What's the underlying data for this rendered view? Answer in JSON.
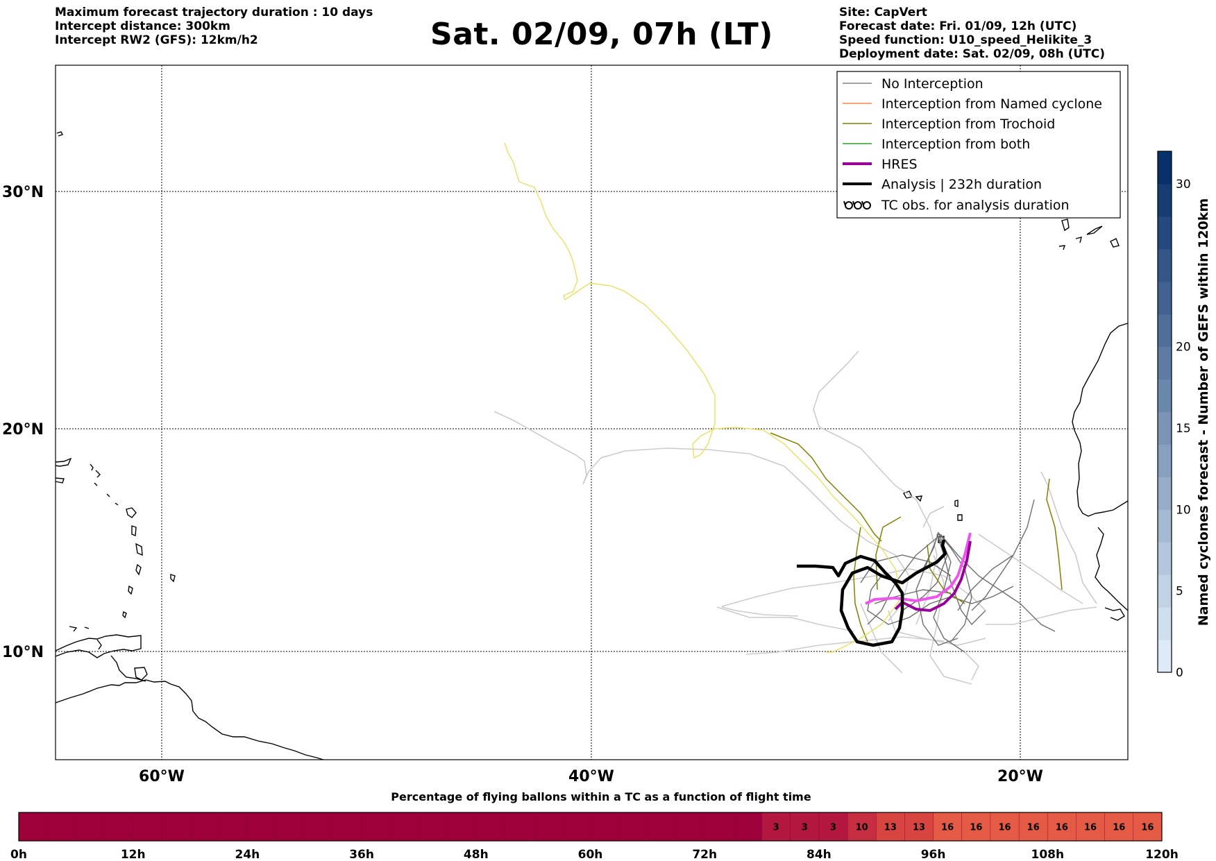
{
  "header_left": [
    "Maximum forecast trajectory duration : 10 days",
    "Intercept distance: 300km",
    "Intercept RW2 (GFS):  12km/h2"
  ],
  "title": "Sat. 02/09, 07h (LT)",
  "header_right": [
    "Site: CapVert",
    "Forecast date: Fri. 01/09, 12h (UTC)",
    "Speed function: U10_speed_Helikite_3",
    "Deployment date: Sat. 02/09, 08h (UTC)"
  ],
  "map": {
    "lat_labels": [
      "30°N",
      "20°N",
      "10°N"
    ],
    "lon_labels": [
      "60°W",
      "40°W",
      "20°W"
    ],
    "lat_values": [
      30,
      20,
      10
    ],
    "lon_values": [
      -60,
      -40,
      -20
    ],
    "lon_range": [
      -65,
      -15
    ],
    "lat_range": [
      5.3,
      34.7
    ]
  },
  "legend": {
    "items": [
      {
        "label": "No Interception",
        "color": "#808080",
        "style": "thin"
      },
      {
        "label": "Interception from Named cyclone",
        "color": "#ff7f50",
        "style": "thin"
      },
      {
        "label": "Interception from Trochoid",
        "color": "#808000",
        "style": "thin"
      },
      {
        "label": "Interception from both",
        "color": "#2ca02c",
        "style": "thin"
      },
      {
        "label": "HRES",
        "color": "#990099",
        "style": "thick"
      },
      {
        "label": "Analysis | 232h duration",
        "color": "#000000",
        "style": "thick"
      },
      {
        "label": "TC obs. for analysis duration",
        "color": "#000000",
        "style": "symbol"
      }
    ]
  },
  "colorbar_vertical": {
    "label": "Named cyclones forecast - Number of GEFS within 120km",
    "ticks": [
      "0",
      "5",
      "10",
      "15",
      "20",
      "30"
    ],
    "tick_values": [
      0,
      5,
      10,
      15,
      20,
      30
    ],
    "max": 32
  },
  "colorbar_bottom": {
    "title": "Percentage of flying ballons within a TC as a function of flight time",
    "ticks": [
      "0h",
      "12h",
      "24h",
      "36h",
      "48h",
      "60h",
      "72h",
      "84h",
      "96h",
      "108h",
      "120h"
    ],
    "cells": [
      "",
      "",
      "",
      "",
      "",
      "",
      "",
      "",
      "",
      "",
      "",
      "",
      "",
      "",
      "",
      "",
      "",
      "",
      "",
      "",
      "",
      "",
      "",
      "",
      "",
      "",
      "3",
      "3",
      "3",
      "10",
      "13",
      "13",
      "16",
      "16",
      "16",
      "16",
      "16",
      "16",
      "16",
      "16"
    ],
    "base_color": "#9e003a",
    "cell_colors": {
      "3": "#b3173f",
      "10": "#c72d40",
      "13": "#d8443f",
      "16": "#e45a45"
    }
  }
}
